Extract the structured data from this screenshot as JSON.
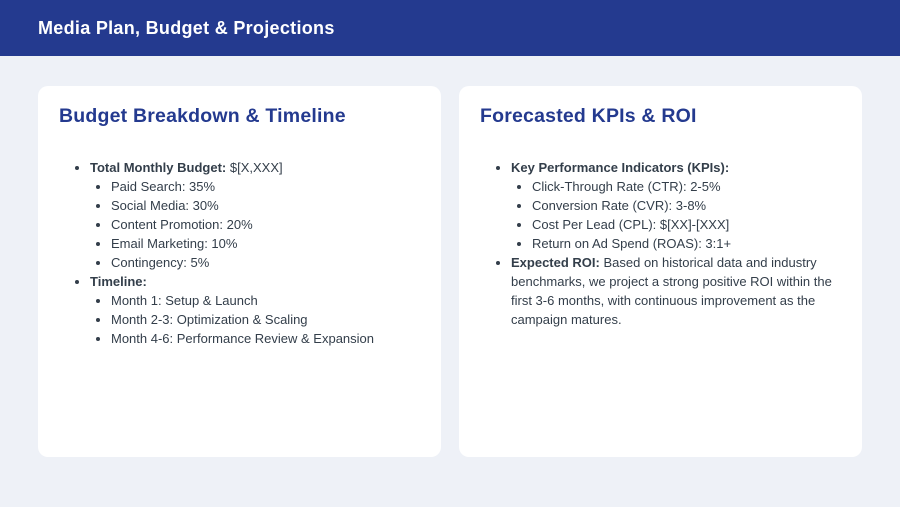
{
  "header": {
    "title": "Media Plan, Budget & Projections"
  },
  "colors": {
    "primary_blue": "#243a8f",
    "background": "#eef1f7",
    "card_background": "#ffffff",
    "body_text": "#333e4a"
  },
  "cards": [
    {
      "title": "Budget Breakdown & Timeline",
      "items": [
        {
          "label": "Total Monthly Budget:",
          "text": " $[X,XXX]",
          "children": [
            "Paid Search: 35%",
            "Social Media: 30%",
            "Content Promotion: 20%",
            "Email Marketing: 10%",
            "Contingency: 5%"
          ]
        },
        {
          "label": "Timeline:",
          "text": "",
          "children": [
            "Month 1: Setup & Launch",
            "Month 2-3: Optimization & Scaling",
            "Month 4-6: Performance Review & Expansion"
          ]
        }
      ]
    },
    {
      "title": "Forecasted KPIs & ROI",
      "items": [
        {
          "label": "Key Performance Indicators (KPIs):",
          "text": "",
          "children": [
            "Click-Through Rate (CTR): 2-5%",
            "Conversion Rate (CVR): 3-8%",
            "Cost Per Lead (CPL): $[XX]-[XXX]",
            "Return on Ad Spend (ROAS): 3:1+"
          ]
        },
        {
          "label": "Expected ROI:",
          "text": " Based on historical data and industry benchmarks, we project a strong positive ROI within the first 3-6 months, with continuous improvement as the campaign matures.",
          "children": []
        }
      ]
    }
  ]
}
